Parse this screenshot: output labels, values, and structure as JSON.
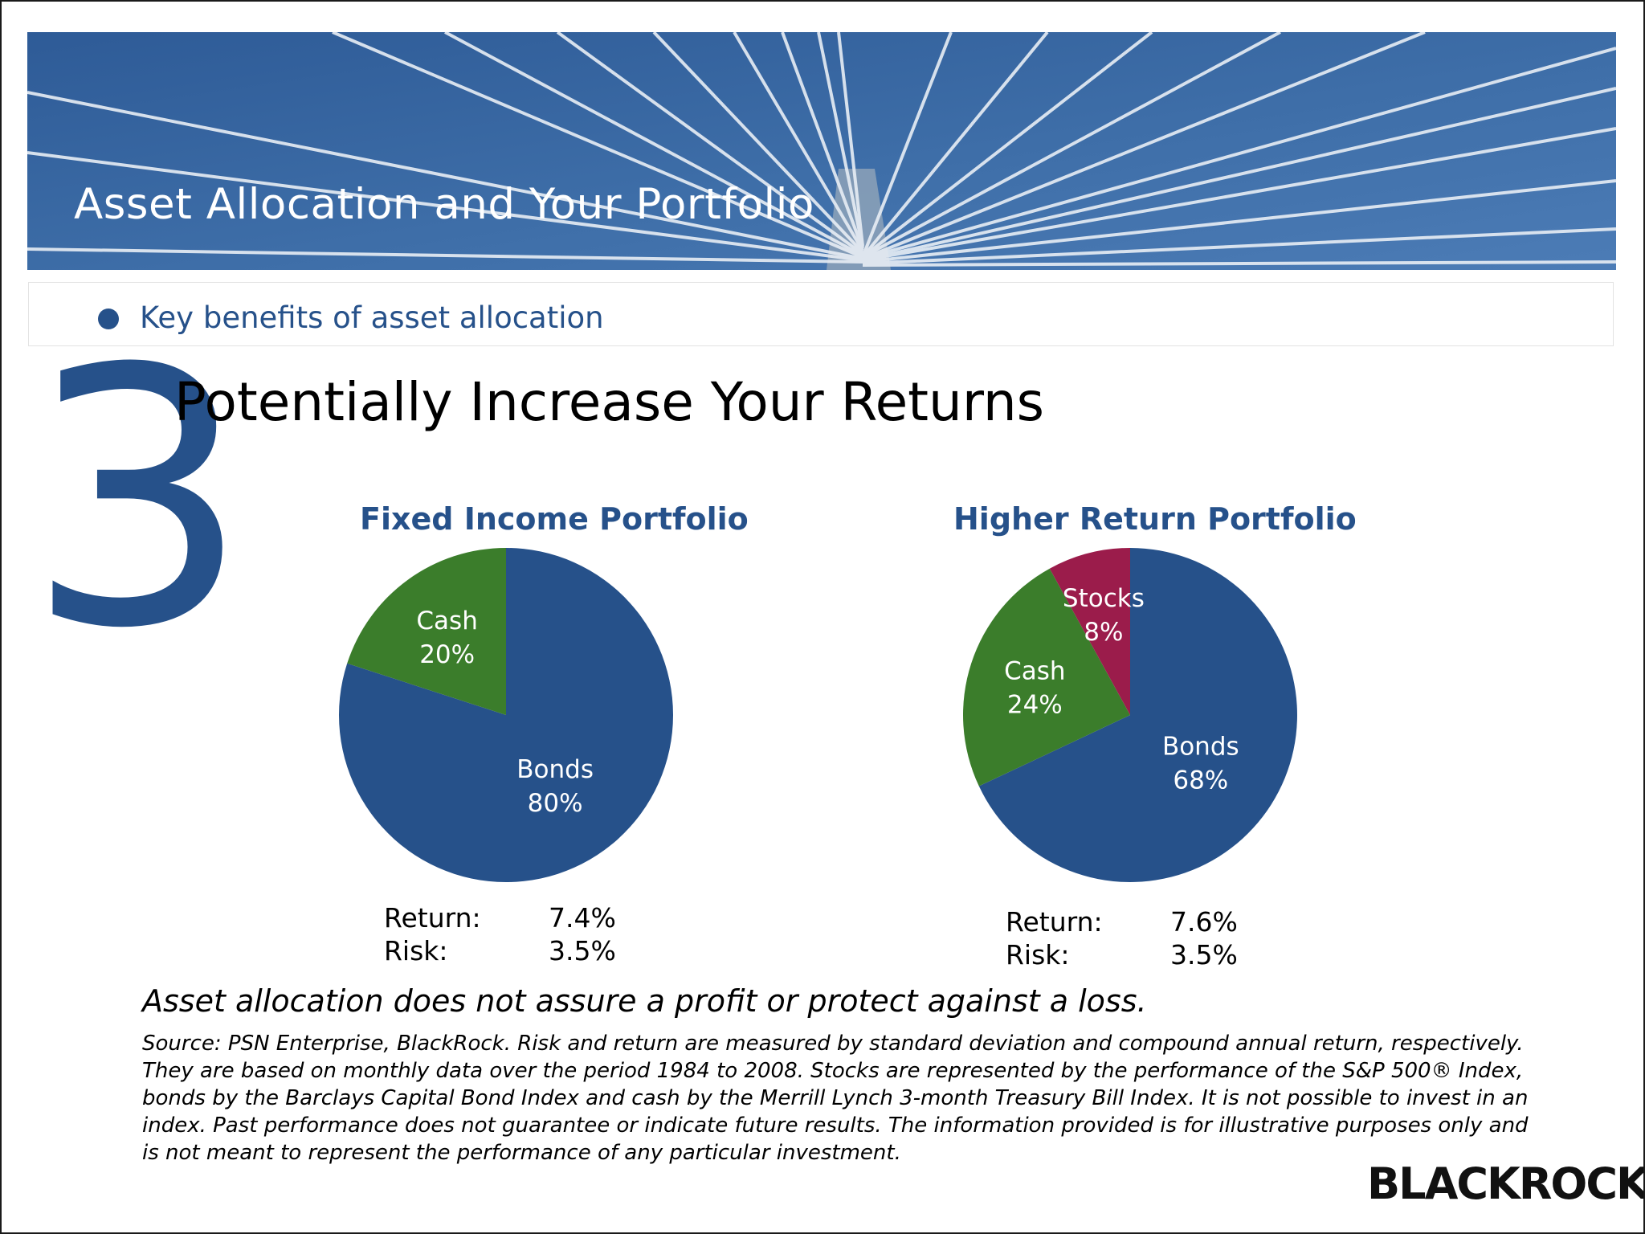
{
  "banner": {
    "title": "Asset Allocation and Your Portfolio"
  },
  "bullet": {
    "text": "Key benefits of asset allocation"
  },
  "section": {
    "number": "3",
    "heading": "Potentially Increase Your Returns"
  },
  "colors": {
    "brand_blue": "#26518a",
    "bonds": "#26518a",
    "cash": "#3b7d2b",
    "stocks": "#9b1c4b"
  },
  "chart_data": [
    {
      "type": "pie",
      "title": "Fixed Income Portfolio",
      "slices": [
        {
          "name": "Bonds",
          "label": "80%",
          "value": 80,
          "color": "#26518a"
        },
        {
          "name": "Cash",
          "label": "20%",
          "value": 20,
          "color": "#3b7d2b"
        }
      ],
      "stats": [
        {
          "key": "Return:",
          "value": "7.4%"
        },
        {
          "key": "Risk:",
          "value": "3.5%"
        }
      ]
    },
    {
      "type": "pie",
      "title": "Higher Return Portfolio",
      "slices": [
        {
          "name": "Bonds",
          "label": "68%",
          "value": 68,
          "color": "#26518a"
        },
        {
          "name": "Cash",
          "label": "24%",
          "value": 24,
          "color": "#3b7d2b"
        },
        {
          "name": "Stocks",
          "label": "8%",
          "value": 8,
          "color": "#9b1c4b"
        }
      ],
      "stats": [
        {
          "key": "Return:",
          "value": "7.6%"
        },
        {
          "key": "Risk:",
          "value": "3.5%"
        }
      ]
    }
  ],
  "disclaimer": "Asset allocation does not assure a profit or protect against a loss.",
  "source": "Source: PSN Enterprise, BlackRock. Risk and return are measured by standard deviation and compound annual return, respectively. They are based on monthly data over the period 1984 to 2008. Stocks are represented by the performance of the S&P 500® Index, bonds by the Barclays Capital Bond Index and cash by the Merrill Lynch 3-month Treasury Bill Index. It is not possible to invest in an index. Past performance does not guarantee or indicate future results. The information provided is for illustrative purposes only and is not meant to represent the performance of any particular investment.",
  "logo": {
    "text": "BLACKROCK"
  }
}
